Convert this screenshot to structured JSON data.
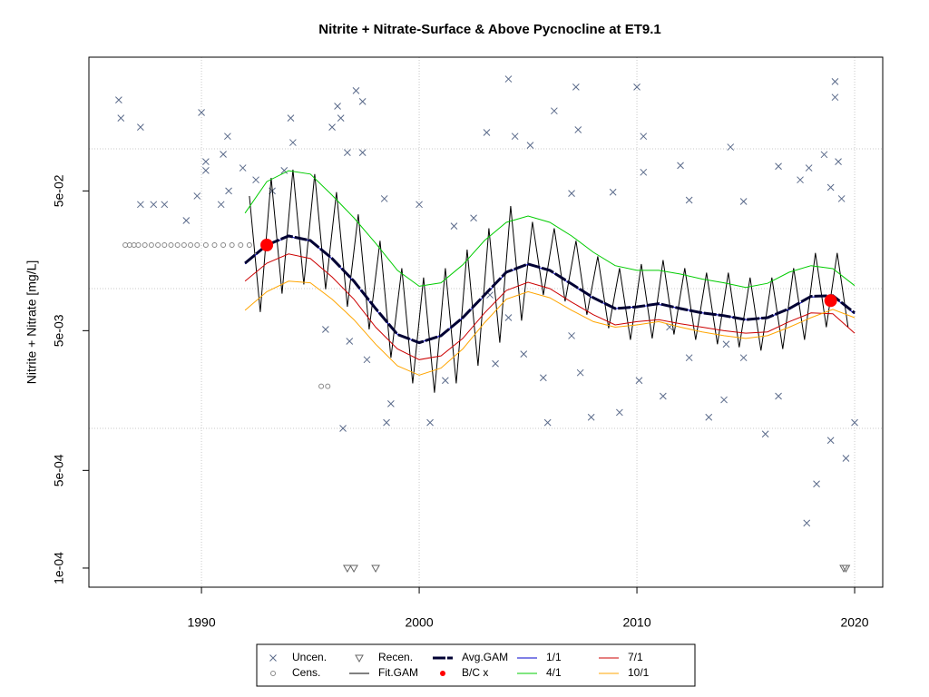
{
  "chart_data": {
    "type": "line",
    "title": "Nitrite + Nitrate-Surface & Above Pycnocline at ET9.1",
    "y_label": "Nitrite + Nitrate [mg/L]",
    "log_y": true,
    "grid": true,
    "xlim": [
      1984.83,
      2021.29
    ],
    "xticks": [
      1990,
      2000,
      2010,
      2020
    ],
    "ylim": [
      7.3e-05,
      0.453
    ],
    "yticks": [
      {
        "value": 0.0001,
        "label": "1e-04"
      },
      {
        "value": 0.0005,
        "label": "5e-04"
      },
      {
        "value": 0.005,
        "label": "5e-03"
      },
      {
        "value": 0.05,
        "label": "5e-02"
      }
    ],
    "ygrid": [
      0.001,
      0.01,
      0.1
    ],
    "legend": "bottom",
    "series": [
      {
        "name": "Uncen.",
        "style": "cross",
        "color": "#5a6a8a",
        "x": [
          1986.2,
          1986.3,
          1987.2,
          1987.2,
          1987.8,
          1988.3,
          1989.3,
          1990.0,
          1990.2,
          1989.8,
          1990.2,
          1991.0,
          1991.2,
          1991.25,
          1990.9,
          1991.9,
          1992.5,
          1993.25,
          1994.1,
          1994.2,
          1993.8,
          1996.0,
          1996.25,
          1996.4,
          1997.1,
          1997.4,
          1997.4,
          1996.7,
          1998.4,
          2000.0,
          2001.6,
          2002.5,
          2003.1,
          2004.1,
          2004.4,
          2005.1,
          2006.2,
          2007.2,
          2007.3,
          2007.0,
          2008.9,
          2010.0,
          2010.3,
          2010.3,
          2012.0,
          2012.4,
          2014.3,
          2014.9,
          2016.5,
          2017.5,
          2017.9,
          2018.6,
          2019.1,
          2019.1,
          2019.25,
          2018.9,
          2019.4,
          1995.7,
          1996.5,
          1996.8,
          1997.6,
          1998.5,
          1998.7,
          2000.5,
          2001.2,
          2003.5,
          2004.8,
          2005.7,
          2005.9,
          2007.4,
          2007.9,
          2009.2,
          2010.1,
          2011.2,
          2013.3,
          2014.0,
          2014.9,
          2015.9,
          2016.5,
          2017.8,
          2018.25,
          2018.9,
          2019.6,
          2020.0,
          2011.5,
          2012.4,
          2014.1,
          2007.0,
          2004.1,
          2003.25
        ],
        "values": [
          0.224,
          0.166,
          0.143,
          0.04,
          0.04,
          0.04,
          0.0307,
          0.182,
          0.081,
          0.046,
          0.07,
          0.0914,
          0.123,
          0.05,
          0.04,
          0.073,
          0.06,
          0.05,
          0.166,
          0.111,
          0.07,
          0.143,
          0.202,
          0.166,
          0.261,
          0.218,
          0.094,
          0.094,
          0.044,
          0.04,
          0.028,
          0.032,
          0.131,
          0.316,
          0.123,
          0.106,
          0.187,
          0.277,
          0.137,
          0.048,
          0.049,
          0.277,
          0.123,
          0.068,
          0.076,
          0.043,
          0.103,
          0.042,
          0.075,
          0.06,
          0.073,
          0.091,
          0.303,
          0.234,
          0.081,
          0.053,
          0.044,
          0.0051,
          0.001,
          0.0042,
          0.0031,
          0.0011,
          0.0015,
          0.0011,
          0.0022,
          0.0029,
          0.0034,
          0.0023,
          0.0011,
          0.0025,
          0.0012,
          0.0013,
          0.0022,
          0.0017,
          0.0012,
          0.0016,
          0.0032,
          0.00091,
          0.0017,
          0.00021,
          0.0004,
          0.00082,
          0.00061,
          0.0011,
          0.0053,
          0.0032,
          0.004,
          0.0046,
          0.0062,
          0.009
        ]
      },
      {
        "name": "Cens.",
        "style": "circle",
        "color": "#888888",
        "x": [
          1986.5,
          1986.7,
          1986.9,
          1987.1,
          1987.4,
          1987.7,
          1988.0,
          1988.3,
          1988.6,
          1988.9,
          1989.2,
          1989.5,
          1989.8,
          1990.2,
          1990.6,
          1991.0,
          1991.4,
          1991.8,
          1992.2,
          1995.5,
          1995.8
        ],
        "values": [
          0.0205,
          0.0205,
          0.0205,
          0.0205,
          0.0205,
          0.0205,
          0.0205,
          0.0205,
          0.0205,
          0.0205,
          0.0205,
          0.0205,
          0.0205,
          0.0205,
          0.0205,
          0.0205,
          0.0205,
          0.0205,
          0.0205,
          0.002,
          0.002
        ]
      },
      {
        "name": "Recen.",
        "style": "triangle",
        "color": "#666666",
        "x": [
          1996.7,
          1997.0,
          1998.0,
          2019.5,
          2019.6
        ],
        "values": [
          0.0001,
          0.0001,
          0.0001,
          0.0001,
          0.0001
        ]
      },
      {
        "name": "Fit.GAM",
        "style": "line",
        "color": "#000000",
        "x": [
          1992.2,
          1992.7,
          1993.2,
          1993.7,
          1994.2,
          1994.7,
          1995.2,
          1995.7,
          1996.2,
          1996.7,
          1997.2,
          1997.7,
          1998.2,
          1998.7,
          1999.2,
          1999.7,
          2000.2,
          2000.7,
          2001.2,
          2001.7,
          2002.2,
          2002.7,
          2003.2,
          2003.7,
          2004.2,
          2004.7,
          2005.2,
          2005.7,
          2006.2,
          2006.7,
          2007.2,
          2007.7,
          2008.2,
          2008.7,
          2009.2,
          2009.7,
          2010.2,
          2010.7,
          2011.2,
          2011.7,
          2012.2,
          2012.7,
          2013.2,
          2013.7,
          2014.2,
          2014.7,
          2015.2,
          2015.7,
          2016.2,
          2016.7,
          2017.2,
          2017.7,
          2018.2,
          2018.7,
          2019.2,
          2019.7
        ],
        "values": [
          0.046,
          0.0068,
          0.062,
          0.0092,
          0.071,
          0.0107,
          0.066,
          0.0099,
          0.049,
          0.0074,
          0.034,
          0.0051,
          0.022,
          0.0032,
          0.014,
          0.0021,
          0.012,
          0.0018,
          0.014,
          0.0021,
          0.019,
          0.0028,
          0.027,
          0.0041,
          0.039,
          0.0059,
          0.03,
          0.009,
          0.027,
          0.0081,
          0.022,
          0.0065,
          0.017,
          0.0052,
          0.014,
          0.0043,
          0.015,
          0.0044,
          0.016,
          0.0047,
          0.014,
          0.0043,
          0.013,
          0.004,
          0.013,
          0.0038,
          0.012,
          0.0036,
          0.012,
          0.0037,
          0.014,
          0.0043,
          0.018,
          0.0053,
          0.018,
          0.0053
        ]
      },
      {
        "name": "Avg.GAM",
        "style": "dash",
        "color": "#000033",
        "x": [
          1992,
          1993,
          1994,
          1995,
          1996,
          1997,
          1998,
          1999,
          2000,
          2001,
          2002,
          2003,
          2004,
          2005,
          2006,
          2007,
          2008,
          2009,
          2010,
          2011,
          2012,
          2013,
          2014,
          2015,
          2016,
          2017,
          2018,
          2019,
          2020
        ],
        "values": [
          0.0152,
          0.0205,
          0.0238,
          0.0221,
          0.0164,
          0.0113,
          0.0072,
          0.0047,
          0.0041,
          0.0046,
          0.0062,
          0.009,
          0.0131,
          0.015,
          0.0135,
          0.0108,
          0.0086,
          0.0072,
          0.0074,
          0.0078,
          0.0072,
          0.0067,
          0.0064,
          0.006,
          0.0062,
          0.0072,
          0.0088,
          0.0089,
          0.0067
        ]
      },
      {
        "name": "B/C x",
        "style": "dot",
        "color": "#ff0000",
        "x": [
          1993.0,
          2018.9
        ],
        "values": [
          0.0205,
          0.0082
        ]
      },
      {
        "name": "1/1",
        "style": "line",
        "color": "#0000cd",
        "x": [
          1992,
          1993,
          1994,
          1995,
          1996,
          1997,
          1998,
          1999,
          2000,
          2001,
          2002,
          2003,
          2004,
          2005,
          2006,
          2007,
          2008,
          2009,
          2010,
          2011,
          2012,
          2013,
          2014,
          2015,
          2016,
          2017,
          2018,
          2019,
          2020
        ],
        "values": [
          0.015,
          0.0203,
          0.0236,
          0.022,
          0.0163,
          0.0112,
          0.0071,
          0.0047,
          0.0041,
          0.0046,
          0.0062,
          0.0089,
          0.013,
          0.0149,
          0.0134,
          0.0107,
          0.0085,
          0.0072,
          0.0074,
          0.0077,
          0.0072,
          0.0067,
          0.0064,
          0.006,
          0.0062,
          0.0071,
          0.0087,
          0.0088,
          0.0066
        ]
      },
      {
        "name": "4/1",
        "style": "line",
        "color": "#00cc00",
        "x": [
          1992,
          1993,
          1994,
          1995,
          1996,
          1997,
          1998,
          1999,
          2000,
          2001,
          2002,
          2003,
          2004,
          2005,
          2006,
          2007,
          2008,
          2009,
          2010,
          2011,
          2012,
          2013,
          2014,
          2015,
          2016,
          2017,
          2018,
          2019,
          2020
        ],
        "values": [
          0.0347,
          0.0583,
          0.0698,
          0.066,
          0.0466,
          0.0321,
          0.0211,
          0.0135,
          0.0104,
          0.011,
          0.0148,
          0.0221,
          0.0298,
          0.0331,
          0.0298,
          0.0238,
          0.0182,
          0.0146,
          0.0135,
          0.0135,
          0.0127,
          0.0117,
          0.011,
          0.0102,
          0.0109,
          0.0131,
          0.0146,
          0.0139,
          0.0105
        ]
      },
      {
        "name": "7/1",
        "style": "line",
        "color": "#cc0000",
        "x": [
          1992,
          1993,
          1994,
          1995,
          1996,
          1997,
          1998,
          1999,
          2000,
          2001,
          2002,
          2003,
          2004,
          2005,
          2006,
          2007,
          2008,
          2009,
          2010,
          2011,
          2012,
          2013,
          2014,
          2015,
          2016,
          2017,
          2018,
          2019,
          2020
        ],
        "values": [
          0.0113,
          0.0152,
          0.0177,
          0.0164,
          0.0121,
          0.0084,
          0.0053,
          0.0037,
          0.0031,
          0.0033,
          0.0044,
          0.0067,
          0.0097,
          0.0111,
          0.01,
          0.008,
          0.0065,
          0.0055,
          0.0058,
          0.006,
          0.0056,
          0.0053,
          0.005,
          0.0048,
          0.0049,
          0.0058,
          0.0067,
          0.0066,
          0.0048
        ]
      },
      {
        "name": "10/1",
        "style": "line",
        "color": "#ffa500",
        "x": [
          1992,
          1993,
          1994,
          1995,
          1996,
          1997,
          1998,
          1999,
          2000,
          2001,
          2002,
          2003,
          2004,
          2005,
          2006,
          2007,
          2008,
          2009,
          2010,
          2011,
          2012,
          2013,
          2014,
          2015,
          2016,
          2017,
          2018,
          2019,
          2020
        ],
        "values": [
          0.007,
          0.0095,
          0.0113,
          0.011,
          0.0084,
          0.006,
          0.004,
          0.0028,
          0.0024,
          0.0027,
          0.0037,
          0.0057,
          0.0084,
          0.0095,
          0.0086,
          0.007,
          0.0058,
          0.0053,
          0.0055,
          0.0058,
          0.0053,
          0.0049,
          0.0046,
          0.0044,
          0.0046,
          0.0053,
          0.0062,
          0.0071,
          0.0062
        ]
      }
    ]
  }
}
